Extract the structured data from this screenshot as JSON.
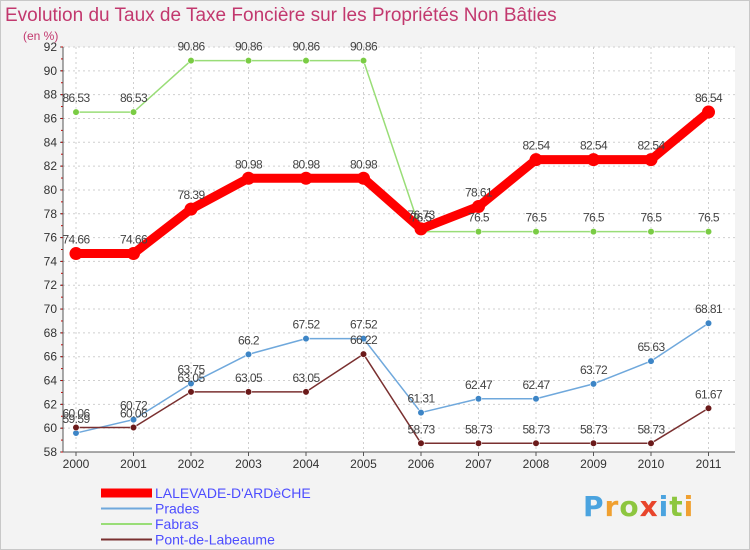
{
  "chart_data": {
    "type": "line",
    "title": "Evolution du Taux de Taxe Foncière sur les Propriétés Non Bâties",
    "unit_label": "(en %)",
    "x": [
      "2000",
      "2001",
      "2002",
      "2003",
      "2004",
      "2005",
      "2006",
      "2007",
      "2008",
      "2009",
      "2010",
      "2011"
    ],
    "ylim": [
      58,
      92
    ],
    "yticks": [
      58,
      60,
      62,
      64,
      66,
      68,
      70,
      72,
      74,
      76,
      78,
      80,
      82,
      84,
      86,
      88,
      90,
      92
    ],
    "series": [
      {
        "name": "LALEVADE-D'ARDèCHE",
        "color": "#ff0000",
        "line_style": "thick",
        "values": [
          74.66,
          74.66,
          78.39,
          80.98,
          80.98,
          80.98,
          76.73,
          78.61,
          82.54,
          82.54,
          82.54,
          86.54
        ],
        "labels": [
          "74.66",
          "74.66",
          "78.39",
          "80.98",
          "80.98",
          "80.98",
          "76.73",
          "78.61",
          "82.54",
          "82.54",
          "82.54",
          "86.54"
        ]
      },
      {
        "name": "Prades",
        "color": "#6fa8dc",
        "marker_color": "#3d85c6",
        "line_style": "thin",
        "values": [
          59.59,
          60.72,
          63.75,
          66.2,
          67.52,
          67.52,
          61.31,
          62.47,
          62.47,
          63.72,
          65.63,
          68.81
        ],
        "labels": [
          "59.59",
          "60.72",
          "63.75",
          "66.2",
          "67.52",
          "67.52",
          "61.31",
          "62.47",
          "62.47",
          "63.72",
          "65.63",
          "68.81"
        ]
      },
      {
        "name": "Fabras",
        "color": "#99dd77",
        "marker_color": "#7acc44",
        "line_style": "thin",
        "values": [
          86.53,
          86.53,
          90.86,
          90.86,
          90.86,
          90.86,
          76.5,
          76.5,
          76.5,
          76.5,
          76.5,
          76.5
        ],
        "labels": [
          "86.53",
          "86.53",
          "90.86",
          "90.86",
          "90.86",
          "90.86",
          "76.5",
          "76.5",
          "76.5",
          "76.5",
          "76.5",
          "76.5"
        ]
      },
      {
        "name": "Pont-de-Labeaume",
        "color": "#7a3030",
        "marker_color": "#6b1a1a",
        "line_style": "thin",
        "values": [
          60.06,
          60.06,
          63.05,
          63.05,
          63.05,
          66.22,
          58.73,
          58.73,
          58.73,
          58.73,
          58.73,
          61.67
        ],
        "labels": [
          "60.06",
          "60.06",
          "63.05",
          "63.05",
          "63.05",
          "66.22",
          "58.73",
          "58.73",
          "58.73",
          "58.73",
          "58.73",
          "61.67"
        ]
      }
    ]
  },
  "branding": {
    "logo_letters": [
      "P",
      "r",
      "o",
      "x",
      "i",
      "t",
      "i"
    ],
    "logo_colors": [
      "#4aa3df",
      "#f0a030",
      "#8dc63f",
      "#e8452c",
      "#4aa3df",
      "#8dc63f",
      "#f0a030"
    ]
  }
}
